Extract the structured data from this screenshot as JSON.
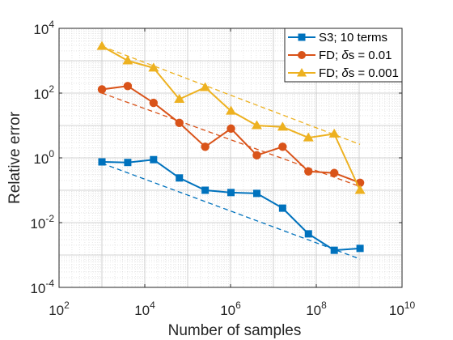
{
  "chart_data": {
    "type": "line",
    "xlabel": "Number of samples",
    "ylabel": "Relative error",
    "xscale": "log",
    "yscale": "log",
    "xlim": [
      100,
      10000000000
    ],
    "ylim": [
      0.0001,
      10000
    ],
    "xticks": [
      {
        "base": "10",
        "exp": "2"
      },
      {
        "base": "10",
        "exp": "4"
      },
      {
        "base": "10",
        "exp": "6"
      },
      {
        "base": "10",
        "exp": "8"
      },
      {
        "base": "10",
        "exp": "10"
      }
    ],
    "yticks": [
      {
        "base": "10",
        "exp": "-4"
      },
      {
        "base": "10",
        "exp": "-2"
      },
      {
        "base": "10",
        "exp": "0"
      },
      {
        "base": "10",
        "exp": "2"
      },
      {
        "base": "10",
        "exp": "4"
      }
    ],
    "grid": true,
    "minor_grid": true,
    "legend_position": "top-right",
    "x": [
      1000,
      4000,
      16000,
      64000,
      256000,
      1024000,
      4096000,
      16384000,
      65536000,
      262144000,
      1048576000
    ],
    "series": [
      {
        "name": "S3; 10 terms",
        "color": "#0072BD",
        "marker": "square",
        "values": [
          0.75,
          0.72,
          0.88,
          0.24,
          0.1,
          0.085,
          0.08,
          0.028,
          0.0045,
          0.0014,
          0.0016
        ],
        "fit": {
          "x": [
            1000,
            1048576000
          ],
          "y": [
            0.68,
            0.00075
          ]
        }
      },
      {
        "name": "FD; δs = 0.01",
        "color": "#D95319",
        "marker": "circle",
        "values": [
          130,
          165,
          50,
          12,
          2.2,
          8,
          1.2,
          2.2,
          0.38,
          0.34,
          0.17
        ],
        "fit": {
          "x": [
            1000,
            1048576000
          ],
          "y": [
            100,
            0.13
          ]
        }
      },
      {
        "name": "FD; δs = 0.001",
        "color": "#EDB120",
        "marker": "triangle",
        "values": [
          2800,
          1000,
          600,
          65,
          150,
          28,
          10,
          9,
          4.2,
          5.5,
          0.1
        ],
        "fit": {
          "x": [
            1000,
            1048576000
          ],
          "y": [
            2800,
            2.6
          ]
        }
      }
    ]
  },
  "legend": {
    "items": [
      {
        "prefix": "S3; 10 terms",
        "delta": "",
        "suffix": ""
      },
      {
        "prefix": "FD; ",
        "delta": "δ",
        "suffix": "s = 0.01"
      },
      {
        "prefix": "FD; ",
        "delta": "δ",
        "suffix": "s = 0.001"
      }
    ]
  }
}
